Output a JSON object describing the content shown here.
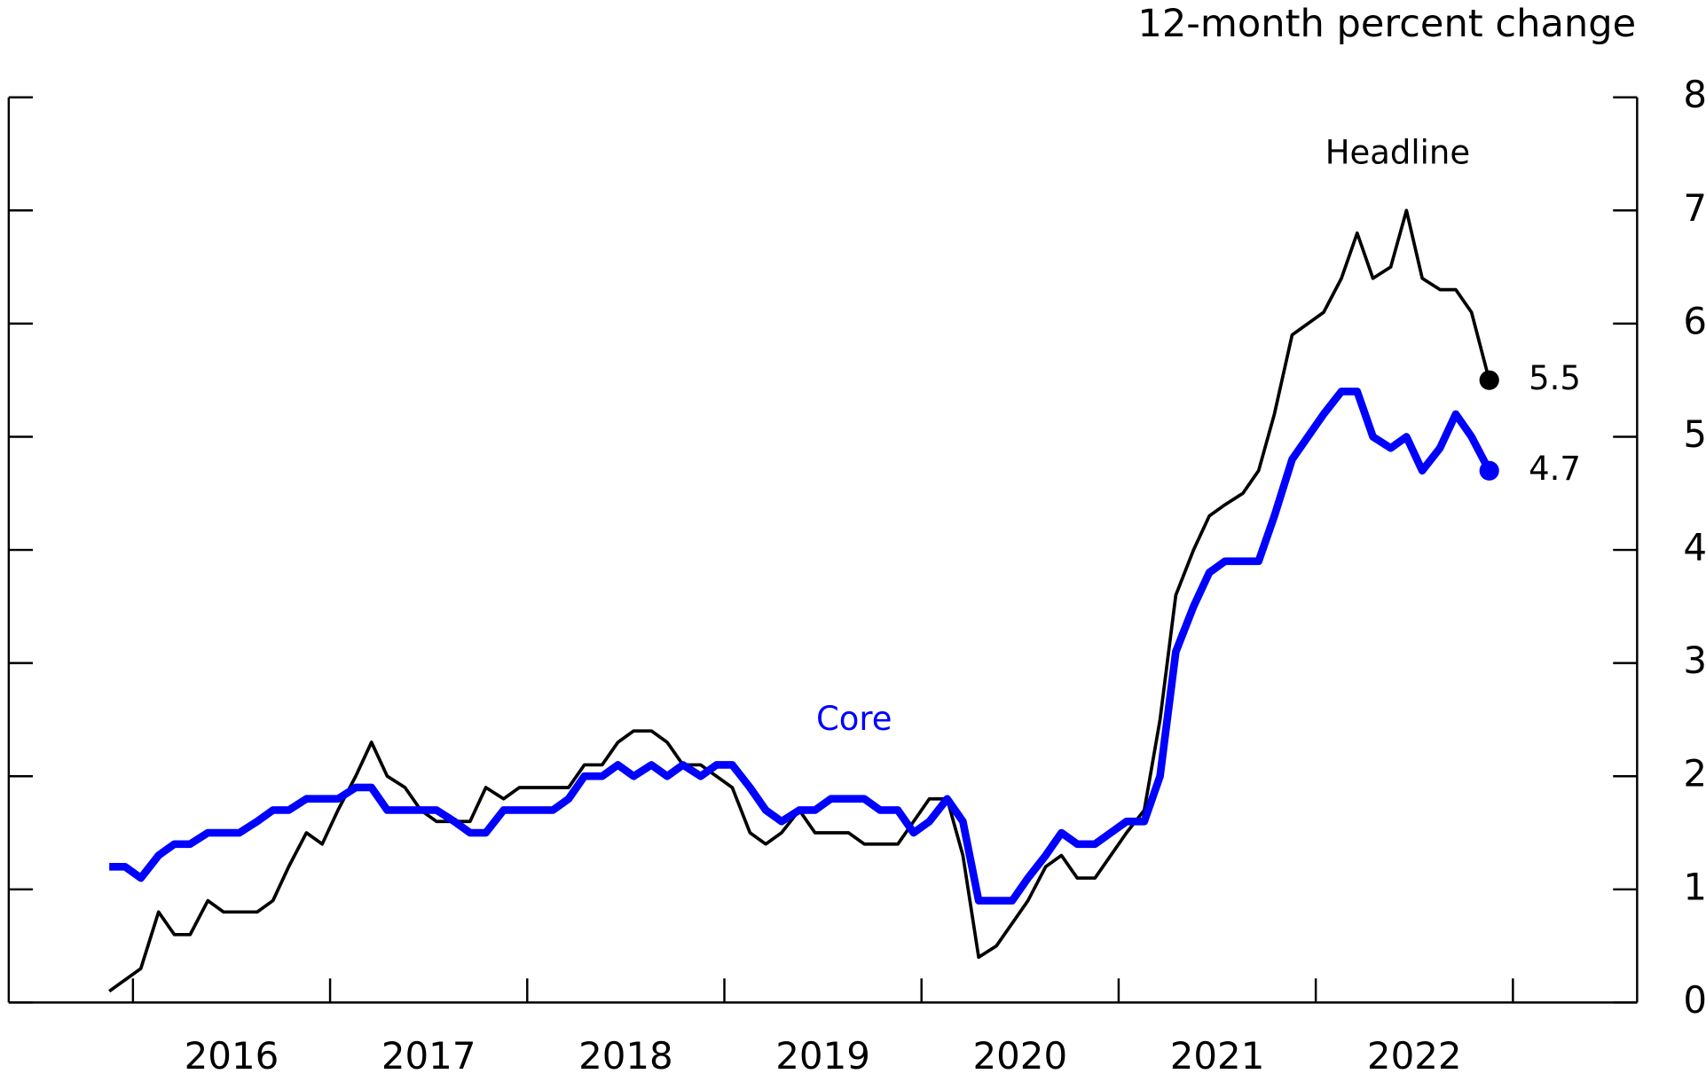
{
  "chart_data": {
    "type": "line",
    "y_axis_label": "12-month percent change",
    "x": [
      2015.88,
      2015.96,
      2016.04,
      2016.13,
      2016.21,
      2016.29,
      2016.38,
      2016.46,
      2016.54,
      2016.63,
      2016.71,
      2016.79,
      2016.88,
      2016.96,
      2017.04,
      2017.13,
      2017.21,
      2017.29,
      2017.38,
      2017.46,
      2017.54,
      2017.63,
      2017.71,
      2017.79,
      2017.88,
      2017.96,
      2018.04,
      2018.13,
      2018.21,
      2018.29,
      2018.38,
      2018.46,
      2018.54,
      2018.63,
      2018.71,
      2018.79,
      2018.88,
      2018.96,
      2019.04,
      2019.13,
      2019.21,
      2019.29,
      2019.38,
      2019.46,
      2019.54,
      2019.63,
      2019.71,
      2019.79,
      2019.88,
      2019.96,
      2020.04,
      2020.13,
      2020.21,
      2020.29,
      2020.38,
      2020.46,
      2020.54,
      2020.63,
      2020.71,
      2020.79,
      2020.88,
      2020.96,
      2021.04,
      2021.13,
      2021.21,
      2021.29,
      2021.38,
      2021.46,
      2021.54,
      2021.63,
      2021.71,
      2021.79,
      2021.88,
      2021.96,
      2022.04,
      2022.13,
      2022.21,
      2022.29,
      2022.38,
      2022.46,
      2022.54,
      2022.63,
      2022.71,
      2022.79,
      2022.88
    ],
    "series": [
      {
        "name": "Headline",
        "color": "#000000",
        "values": [
          0.1,
          0.2,
          0.3,
          0.8,
          0.6,
          0.6,
          0.9,
          0.8,
          0.8,
          0.8,
          0.9,
          1.2,
          1.5,
          1.4,
          1.7,
          2.0,
          2.3,
          2.0,
          1.9,
          1.7,
          1.6,
          1.6,
          1.6,
          1.9,
          1.8,
          1.9,
          1.9,
          1.9,
          1.9,
          2.1,
          2.1,
          2.3,
          2.4,
          2.4,
          2.3,
          2.1,
          2.1,
          2.0,
          1.9,
          1.5,
          1.4,
          1.5,
          1.7,
          1.5,
          1.5,
          1.5,
          1.4,
          1.4,
          1.4,
          1.6,
          1.8,
          1.8,
          1.3,
          0.4,
          0.5,
          0.7,
          0.9,
          1.2,
          1.3,
          1.1,
          1.1,
          1.3,
          1.5,
          1.7,
          2.5,
          3.6,
          4.0,
          4.3,
          4.4,
          4.5,
          4.7,
          5.2,
          5.9,
          6.0,
          6.1,
          6.4,
          6.8,
          6.4,
          6.5,
          7.0,
          6.4,
          6.3,
          6.3,
          6.1,
          5.5
        ]
      },
      {
        "name": "Core",
        "color": "#0000ff",
        "values": [
          1.2,
          1.2,
          1.1,
          1.3,
          1.4,
          1.4,
          1.5,
          1.5,
          1.5,
          1.6,
          1.7,
          1.7,
          1.8,
          1.8,
          1.8,
          1.9,
          1.9,
          1.7,
          1.7,
          1.7,
          1.7,
          1.6,
          1.5,
          1.5,
          1.7,
          1.7,
          1.7,
          1.7,
          1.8,
          2.0,
          2.0,
          2.1,
          2.0,
          2.1,
          2.0,
          2.1,
          2.0,
          2.1,
          2.1,
          1.9,
          1.7,
          1.6,
          1.7,
          1.7,
          1.8,
          1.8,
          1.8,
          1.7,
          1.7,
          1.5,
          1.6,
          1.8,
          1.6,
          0.9,
          0.9,
          0.9,
          1.1,
          1.3,
          1.5,
          1.4,
          1.4,
          1.5,
          1.6,
          1.6,
          2.0,
          3.1,
          3.5,
          3.8,
          3.9,
          3.9,
          3.9,
          4.3,
          4.8,
          5.0,
          5.2,
          5.4,
          5.4,
          5.0,
          4.9,
          5.0,
          4.7,
          4.9,
          5.2,
          5.0,
          4.7
        ]
      }
    ],
    "xlim": [
      2015.37,
      2023.63
    ],
    "xticks": [
      2016,
      2017,
      2018,
      2019,
      2020,
      2021,
      2022,
      2023
    ],
    "ylim": [
      0,
      8
    ],
    "yticks": [
      0,
      1,
      2,
      3,
      4,
      5,
      6,
      7,
      8
    ]
  }
}
